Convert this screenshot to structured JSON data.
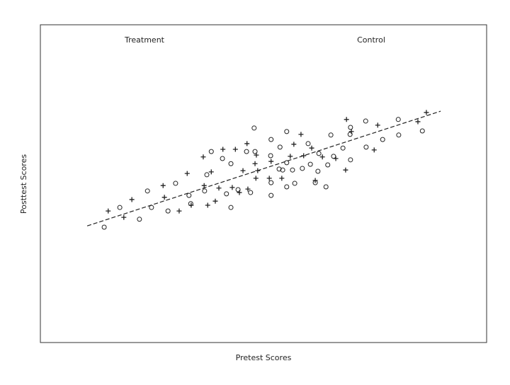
{
  "chart_data": {
    "type": "scatter",
    "x_label": "Pretest Scores",
    "y_label": "Posttest Scores",
    "xlim": [
      0,
      100
    ],
    "ylim": [
      0,
      100
    ],
    "grid": false,
    "series": [
      {
        "name": "Treatment",
        "marker": "+",
        "color": "#222222",
        "x": [
          15.2,
          18.7,
          20.5,
          27.5,
          27.8,
          31.1,
          32.9,
          33.8,
          36.5,
          36.7,
          37.5,
          38.3,
          39.2,
          40.0,
          40.9,
          43.0,
          43.7,
          44.6,
          45.4,
          46.3,
          46.5,
          48.1,
          48.4,
          48.3,
          48.7,
          51.3,
          51.7,
          54.1,
          56.0,
          56.8,
          58.4,
          59.0,
          60.8,
          61.6,
          63.2,
          66.2,
          68.4,
          68.6,
          69.7,
          74.8,
          75.6,
          84.6,
          86.5
        ],
        "values": [
          41.4,
          39.4,
          45.0,
          49.4,
          45.7,
          41.4,
          53.2,
          43.2,
          58.4,
          49.4,
          43.2,
          53.7,
          44.5,
          48.6,
          60.8,
          48.8,
          60.8,
          47.2,
          54.1,
          62.6,
          48.3,
          56.3,
          59.0,
          51.7,
          54.1,
          51.7,
          57.0,
          51.7,
          58.6,
          62.4,
          65.5,
          58.8,
          61.2,
          51.0,
          58.4,
          57.9,
          54.3,
          70.2,
          66.4,
          60.6,
          68.4,
          69.5,
          72.4
        ]
      },
      {
        "name": "Control",
        "marker": "o",
        "color": "#222222",
        "x": [
          14.3,
          17.8,
          22.2,
          24.0,
          24.9,
          28.6,
          30.3,
          33.3,
          33.7,
          36.8,
          37.3,
          38.3,
          40.8,
          41.7,
          42.7,
          42.7,
          44.3,
          46.2,
          47.1,
          47.9,
          48.1,
          51.7,
          51.6,
          51.7,
          51.7,
          53.5,
          53.7,
          54.3,
          55.2,
          55.2,
          55.2,
          56.5,
          57.0,
          58.7,
          60.0,
          60.5,
          61.6,
          62.2,
          62.4,
          64.0,
          64.4,
          65.1,
          65.7,
          67.8,
          69.5,
          69.4,
          69.5,
          72.9,
          73.0,
          76.7,
          80.2,
          80.3,
          85.6
        ],
        "values": [
          36.3,
          42.5,
          38.8,
          47.7,
          42.5,
          41.4,
          50.1,
          46.3,
          43.7,
          47.7,
          52.8,
          60.1,
          57.9,
          46.8,
          56.3,
          42.5,
          48.1,
          60.1,
          47.2,
          67.5,
          60.1,
          63.9,
          58.8,
          50.3,
          46.3,
          54.6,
          61.5,
          54.3,
          66.4,
          49.0,
          56.6,
          54.3,
          50.1,
          54.8,
          62.6,
          56.1,
          50.3,
          53.9,
          59.5,
          49.0,
          55.9,
          65.3,
          58.6,
          61.2,
          67.7,
          65.5,
          57.5,
          69.7,
          61.5,
          63.9,
          70.2,
          65.3,
          66.6
        ]
      }
    ],
    "trend_line": {
      "style": "dashed",
      "color": "#222222",
      "x": [
        10.5,
        89.7
      ],
      "values": [
        36.7,
        72.8
      ]
    }
  }
}
